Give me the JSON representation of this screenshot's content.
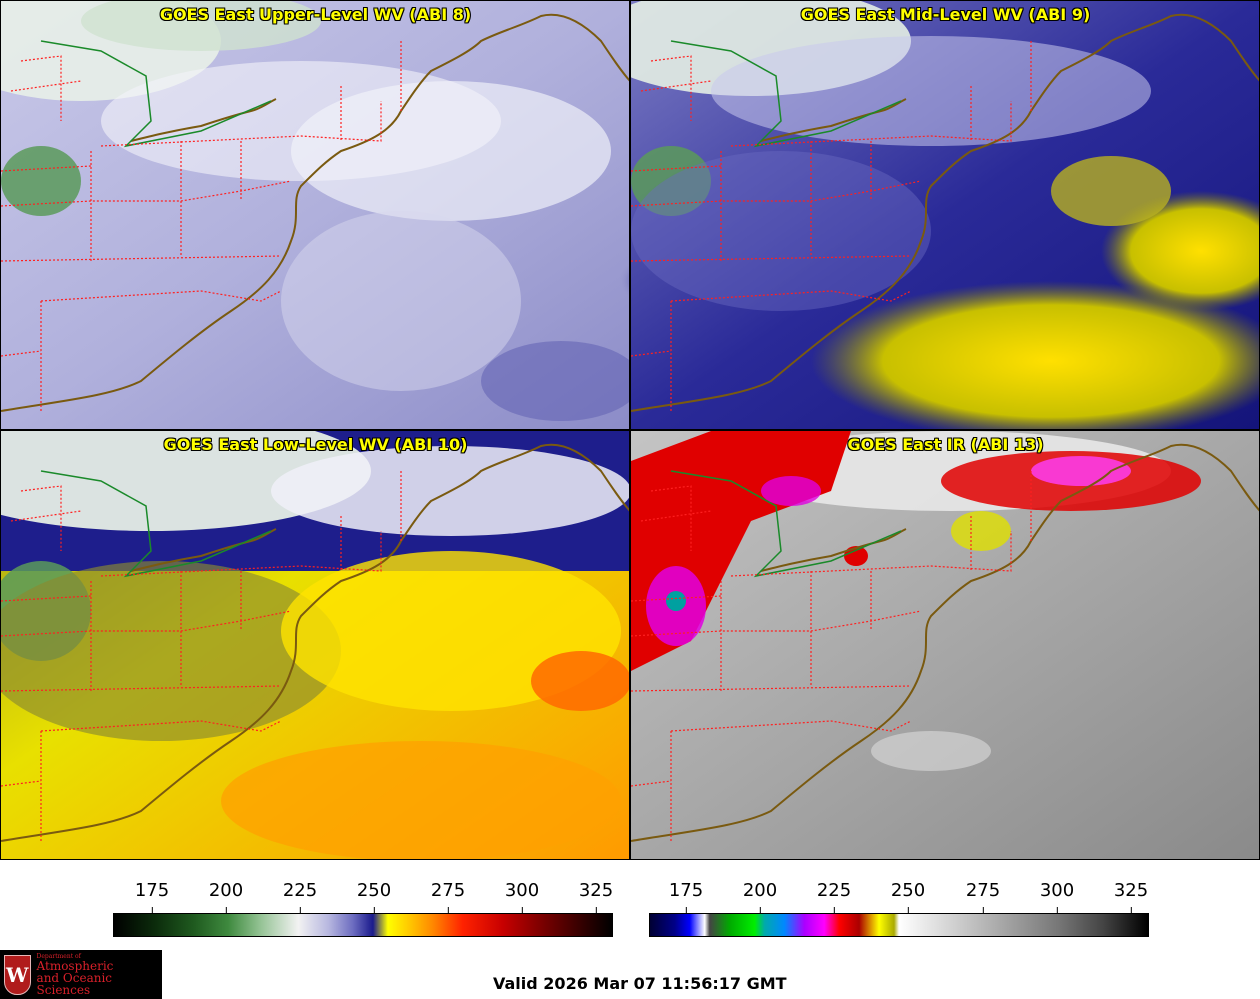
{
  "panels": {
    "upper_left": {
      "title": "GOES East Upper-Level WV (ABI 8)"
    },
    "upper_right": {
      "title": "GOES East Mid-Level WV (ABI 9)"
    },
    "lower_left": {
      "title": "GOES East Low-Level WV (ABI 10)"
    },
    "lower_right": {
      "title": "GOES East IR (ABI 13)"
    }
  },
  "colorbars": {
    "wv": {
      "ticks": [
        "175",
        "200",
        "225",
        "250",
        "275",
        "300",
        "325"
      ]
    },
    "ir": {
      "ticks": [
        "175",
        "200",
        "225",
        "250",
        "275",
        "300",
        "325"
      ]
    }
  },
  "footer": {
    "valid_text": "Valid 2026 Mar 07 11:56:17 GMT",
    "logo": {
      "department": "Department of",
      "line1": "Atmospheric",
      "line2": "and Oceanic Sciences",
      "crest": "W"
    }
  },
  "colors": {
    "title": "#ffff00",
    "border_lines": "#ff2020",
    "coastline": "#7a5a10",
    "international_border": "#1a8a2a"
  }
}
